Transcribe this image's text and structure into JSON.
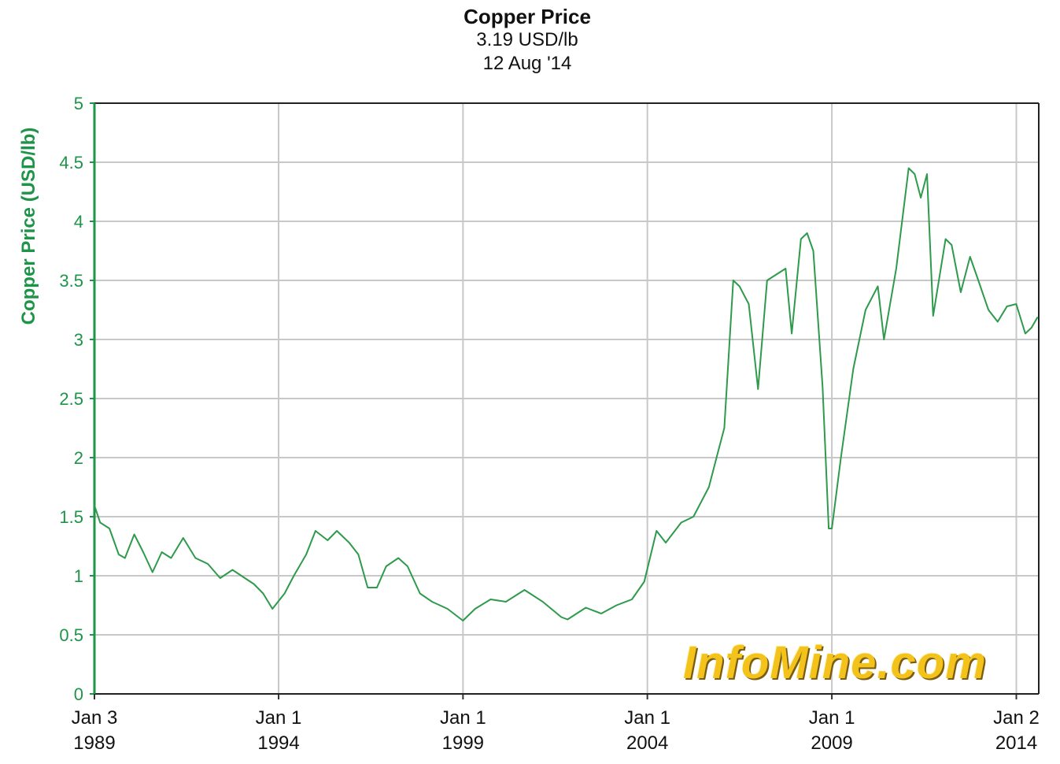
{
  "chart_data": {
    "type": "line",
    "title": "Copper Price",
    "subtitle_value": "3.19 USD/lb",
    "subtitle_date": "12 Aug '14",
    "ylabel": "Copper Price (USD/lb)",
    "xlabel": "",
    "ylim": [
      0,
      5
    ],
    "y_ticks": [
      "0",
      "0.5",
      "1",
      "1.5",
      "2",
      "2.5",
      "3",
      "3.5",
      "4",
      "4.5",
      "5"
    ],
    "x_ticks": [
      {
        "line1": "Jan 3",
        "line2": "1989"
      },
      {
        "line1": "Jan 1",
        "line2": "1994"
      },
      {
        "line1": "Jan 1",
        "line2": "1999"
      },
      {
        "line1": "Jan 1",
        "line2": "2004"
      },
      {
        "line1": "Jan 1",
        "line2": "2009"
      },
      {
        "line1": "Jan 2",
        "line2": "2014"
      }
    ],
    "xlim": [
      "1989-01-03",
      "2014-08-12"
    ],
    "grid": true,
    "line_color": "#2e9a4c",
    "axis_color": "#1e9448",
    "series": [
      {
        "points": [
          [
            "1989-01",
            1.6
          ],
          [
            "1989-03",
            1.45
          ],
          [
            "1989-06",
            1.4
          ],
          [
            "1989-09",
            1.18
          ],
          [
            "1989-11",
            1.15
          ],
          [
            "1990-02",
            1.35
          ],
          [
            "1990-05",
            1.2
          ],
          [
            "1990-08",
            1.03
          ],
          [
            "1990-11",
            1.2
          ],
          [
            "1991-02",
            1.15
          ],
          [
            "1991-06",
            1.32
          ],
          [
            "1991-10",
            1.15
          ],
          [
            "1992-02",
            1.1
          ],
          [
            "1992-06",
            0.98
          ],
          [
            "1992-10",
            1.05
          ],
          [
            "1993-02",
            0.98
          ],
          [
            "1993-05",
            0.93
          ],
          [
            "1993-08",
            0.85
          ],
          [
            "1993-11",
            0.72
          ],
          [
            "1994-03",
            0.85
          ],
          [
            "1994-06",
            1.0
          ],
          [
            "1994-10",
            1.18
          ],
          [
            "1995-01",
            1.38
          ],
          [
            "1995-05",
            1.3
          ],
          [
            "1995-08",
            1.38
          ],
          [
            "1995-12",
            1.28
          ],
          [
            "1996-03",
            1.18
          ],
          [
            "1996-06",
            0.9
          ],
          [
            "1996-09",
            0.9
          ],
          [
            "1996-12",
            1.08
          ],
          [
            "1997-04",
            1.15
          ],
          [
            "1997-07",
            1.08
          ],
          [
            "1997-11",
            0.85
          ],
          [
            "1998-03",
            0.78
          ],
          [
            "1998-08",
            0.72
          ],
          [
            "1999-01",
            0.62
          ],
          [
            "1999-05",
            0.72
          ],
          [
            "1999-10",
            0.8
          ],
          [
            "2000-03",
            0.78
          ],
          [
            "2000-09",
            0.88
          ],
          [
            "2001-03",
            0.78
          ],
          [
            "2001-09",
            0.65
          ],
          [
            "2001-11",
            0.63
          ],
          [
            "2002-05",
            0.73
          ],
          [
            "2002-10",
            0.68
          ],
          [
            "2003-03",
            0.75
          ],
          [
            "2003-08",
            0.8
          ],
          [
            "2003-12",
            0.95
          ],
          [
            "2004-04",
            1.38
          ],
          [
            "2004-07",
            1.28
          ],
          [
            "2004-12",
            1.45
          ],
          [
            "2005-04",
            1.5
          ],
          [
            "2005-09",
            1.75
          ],
          [
            "2005-12",
            2.05
          ],
          [
            "2006-02",
            2.25
          ],
          [
            "2006-05",
            3.5
          ],
          [
            "2006-07",
            3.45
          ],
          [
            "2006-10",
            3.3
          ],
          [
            "2007-01",
            2.58
          ],
          [
            "2007-04",
            3.5
          ],
          [
            "2007-07",
            3.55
          ],
          [
            "2007-10",
            3.6
          ],
          [
            "2007-12",
            3.05
          ],
          [
            "2008-03",
            3.85
          ],
          [
            "2008-05",
            3.9
          ],
          [
            "2008-07",
            3.75
          ],
          [
            "2008-10",
            2.6
          ],
          [
            "2008-12",
            1.4
          ],
          [
            "2009-01",
            1.4
          ],
          [
            "2009-04",
            2.0
          ],
          [
            "2009-08",
            2.75
          ],
          [
            "2009-12",
            3.25
          ],
          [
            "2010-04",
            3.45
          ],
          [
            "2010-06",
            3.0
          ],
          [
            "2010-10",
            3.6
          ],
          [
            "2011-02",
            4.45
          ],
          [
            "2011-04",
            4.4
          ],
          [
            "2011-06",
            4.2
          ],
          [
            "2011-08",
            4.4
          ],
          [
            "2011-10",
            3.2
          ],
          [
            "2012-02",
            3.85
          ],
          [
            "2012-04",
            3.8
          ],
          [
            "2012-07",
            3.4
          ],
          [
            "2012-10",
            3.7
          ],
          [
            "2012-12",
            3.55
          ],
          [
            "2013-04",
            3.25
          ],
          [
            "2013-07",
            3.15
          ],
          [
            "2013-10",
            3.28
          ],
          [
            "2014-01",
            3.3
          ],
          [
            "2014-04",
            3.05
          ],
          [
            "2014-06",
            3.1
          ],
          [
            "2014-08",
            3.19
          ]
        ]
      }
    ]
  },
  "watermark": "InfoMine.com"
}
